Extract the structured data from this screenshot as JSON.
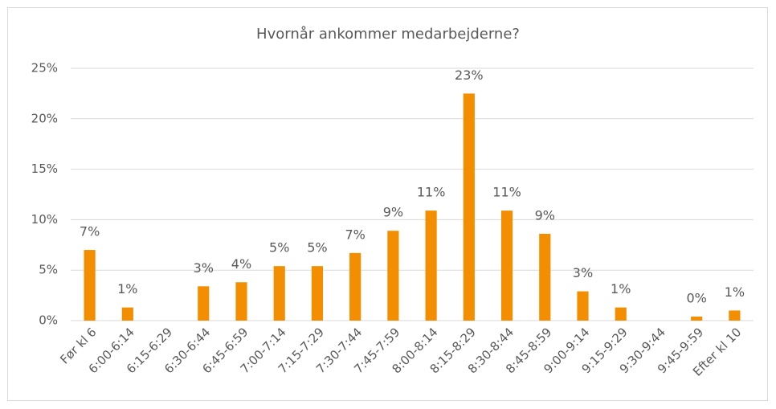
{
  "chart_data": {
    "type": "bar",
    "title": "Hvornår ankommer medarbejderne?",
    "categories": [
      "Før kl 6",
      "6:00-6:14",
      "6:15-6:29",
      "6:30-6:44",
      "6:45-6:59",
      "7:00-7:14",
      "7:15-7:29",
      "7:30-7:44",
      "7:45-7:59",
      "8:00-8:14",
      "8:15-8:29",
      "8:30-8:44",
      "8:45-8:59",
      "9:00-9:14",
      "9:15-9:29",
      "9:30-9:44",
      "9:45-9:59",
      "Efter kl 10"
    ],
    "values": [
      7.0,
      1.3,
      0,
      3.4,
      3.8,
      5.4,
      5.4,
      6.7,
      8.9,
      10.9,
      22.5,
      10.9,
      8.6,
      2.9,
      1.3,
      0,
      0.4,
      1.0
    ],
    "value_labels": [
      "7%",
      "1%",
      null,
      "3%",
      "4%",
      "5%",
      "5%",
      "7%",
      "9%",
      "11%",
      "23%",
      "11%",
      "9%",
      "3%",
      "1%",
      null,
      "0%",
      "1%"
    ],
    "color": "#f28e00",
    "ylim": [
      0,
      25
    ],
    "yticks": [
      {
        "value": 0,
        "label": "0%"
      },
      {
        "value": 5,
        "label": "5%"
      },
      {
        "value": 10,
        "label": "10%"
      },
      {
        "value": 15,
        "label": "15%"
      },
      {
        "value": 20,
        "label": "20%"
      },
      {
        "value": 25,
        "label": "25%"
      }
    ],
    "grid": true
  }
}
